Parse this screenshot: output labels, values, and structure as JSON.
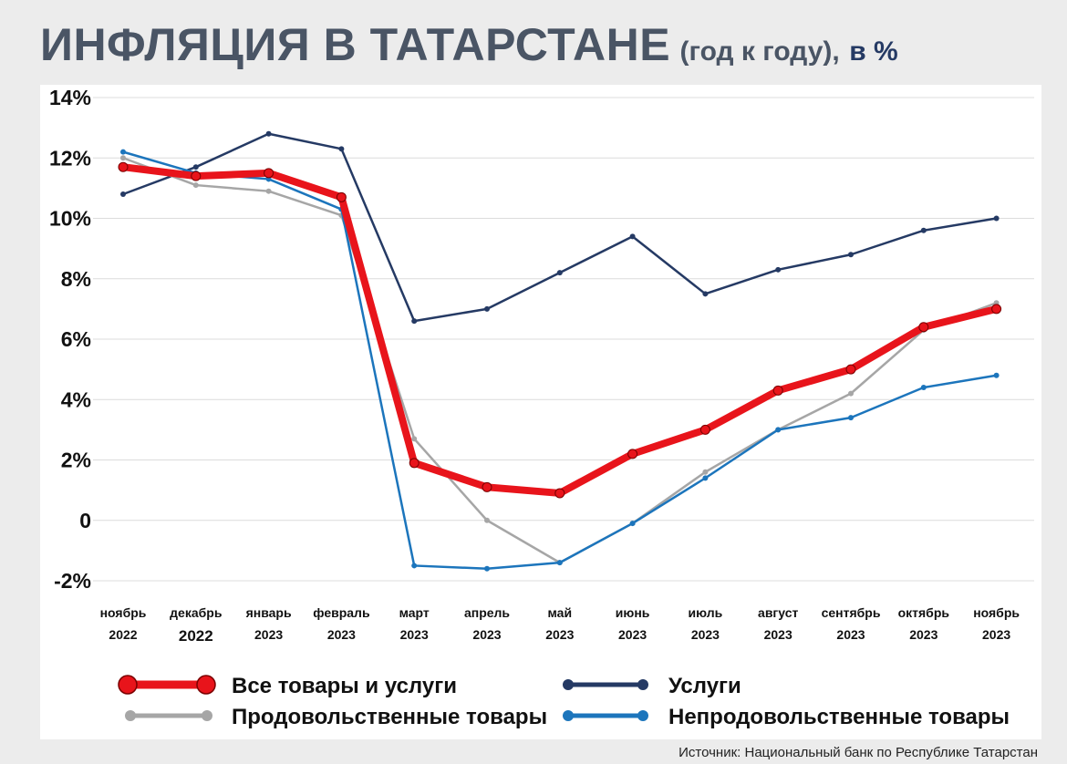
{
  "title": {
    "main": "ИНФЛЯЦИЯ В ТАТАРСТАНЕ",
    "paren": "(год к году),",
    "suffix": "в %"
  },
  "source": "Источник: Национальный банк по Республике Татарстан",
  "chart_data": {
    "type": "line",
    "x_labels": [
      [
        "ноябрь",
        "2022"
      ],
      [
        "декабрь",
        "2022"
      ],
      [
        "январь",
        "2023"
      ],
      [
        "февраль",
        "2023"
      ],
      [
        "март",
        "2023"
      ],
      [
        "апрель",
        "2023"
      ],
      [
        "май",
        "2023"
      ],
      [
        "июнь",
        "2023"
      ],
      [
        "июль",
        "2023"
      ],
      [
        "август",
        "2023"
      ],
      [
        "сентябрь",
        "2023"
      ],
      [
        "октябрь",
        "2023"
      ],
      [
        "ноябрь",
        "2023"
      ]
    ],
    "ylim": [
      -2,
      14
    ],
    "y_ticks": [
      -2,
      0,
      2,
      4,
      6,
      8,
      10,
      12,
      14
    ],
    "y_tick_labels": [
      "-2%",
      "0",
      "2%",
      "4%",
      "6%",
      "8%",
      "10%",
      "12%",
      "14%"
    ],
    "grid": true,
    "legend_position": "bottom",
    "series": [
      {
        "name": "Услуги",
        "color": "#253a64",
        "values": [
          10.8,
          11.7,
          12.8,
          12.3,
          6.6,
          7.0,
          8.2,
          9.4,
          7.5,
          8.3,
          8.8,
          9.6,
          10.0
        ]
      },
      {
        "name": "Продовольственные товары",
        "color": "#a6a6a6",
        "values": [
          12.0,
          11.1,
          10.9,
          10.1,
          2.7,
          0.0,
          -1.4,
          -0.1,
          1.6,
          3.0,
          4.2,
          6.3,
          7.2
        ]
      },
      {
        "name": "Непродовольственные товары",
        "color": "#1c75bc",
        "values": [
          12.2,
          11.5,
          11.3,
          10.3,
          -1.5,
          -1.6,
          -1.4,
          -0.1,
          1.4,
          3.0,
          3.4,
          4.4,
          4.8
        ]
      },
      {
        "name": "Все товары и услуги",
        "color": "#e8141b",
        "values": [
          11.7,
          11.4,
          11.5,
          10.7,
          1.9,
          1.1,
          0.9,
          2.2,
          3.0,
          4.3,
          5.0,
          6.4,
          7.0
        ]
      }
    ],
    "legend": [
      {
        "series": "Все товары и услуги",
        "label": "Все товары и услуги"
      },
      {
        "series": "Услуги",
        "label": "Услуги"
      },
      {
        "series": "Продовольственные товары",
        "label": "Продовольственные товары"
      },
      {
        "series": "Непродовольственные товары",
        "label": "Непродовольственные товары"
      }
    ]
  }
}
